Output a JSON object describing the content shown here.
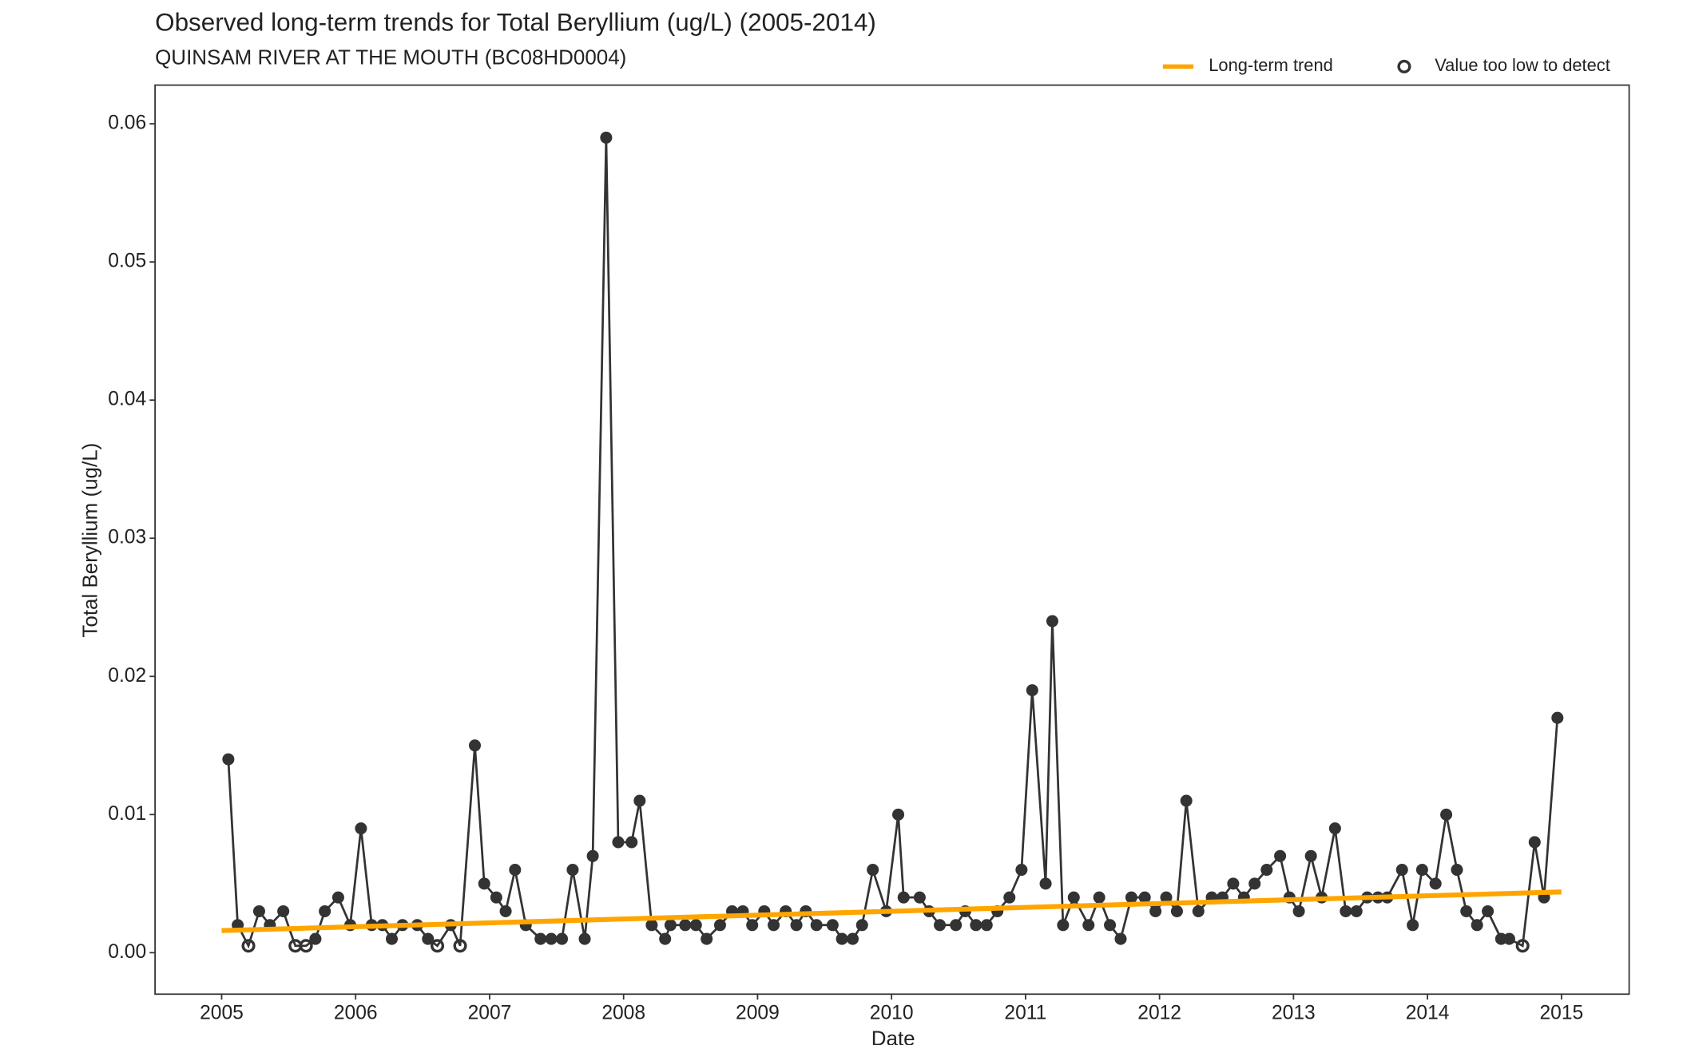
{
  "chart_data": {
    "type": "line",
    "title": "Observed long-term trends for Total Beryllium (ug/L) (2005-2014)",
    "subtitle": "QUINSAM RIVER AT THE MOUTH (BC08HD0004)",
    "x_label": "Date",
    "y_label": "Total Beryllium (ug/L)",
    "xlim": [
      2004.503,
      2015.505
    ],
    "ylim": [
      -0.003,
      0.0628
    ],
    "xticks": [
      2005,
      2006,
      2007,
      2008,
      2009,
      2010,
      2011,
      2012,
      2013,
      2014,
      2015
    ],
    "yticks": [
      {
        "value": 0,
        "label": "0.00"
      },
      0.01,
      0.02,
      0.03,
      0.04,
      0.05,
      0.06
    ],
    "grid": false,
    "legend_position": "top-right",
    "legend_marker_label": "Value too low to detect",
    "series": [
      {
        "color": "#333333",
        "x": [
          2005.05,
          2005.12,
          2005.2,
          2005.28,
          2005.36,
          2005.46,
          2005.55,
          2005.63,
          2005.7,
          2005.77,
          2005.87,
          2005.96,
          2006.04,
          2006.12,
          2006.2,
          2006.27,
          2006.35,
          2006.46,
          2006.54,
          2006.61,
          2006.71,
          2006.78,
          2006.89,
          2006.96,
          2007.05,
          2007.12,
          2007.19,
          2007.27,
          2007.38,
          2007.46,
          2007.54,
          2007.62,
          2007.71,
          2007.77,
          2007.87,
          2007.96,
          2008.06,
          2008.12,
          2008.21,
          2008.31,
          2008.35,
          2008.46,
          2008.54,
          2008.62,
          2008.72,
          2008.81,
          2008.89,
          2008.96,
          2009.05,
          2009.12,
          2009.21,
          2009.29,
          2009.36,
          2009.44,
          2009.56,
          2009.63,
          2009.71,
          2009.78,
          2009.86,
          2009.96,
          2010.05,
          2010.09,
          2010.21,
          2010.28,
          2010.36,
          2010.48,
          2010.55,
          2010.63,
          2010.71,
          2010.79,
          2010.88,
          2010.97,
          2011.05,
          2011.15,
          2011.2,
          2011.28,
          2011.36,
          2011.47,
          2011.55,
          2011.63,
          2011.71,
          2011.79,
          2011.89,
          2011.97,
          2012.05,
          2012.13,
          2012.2,
          2012.29,
          2012.39,
          2012.47,
          2012.55,
          2012.63,
          2012.71,
          2012.8,
          2012.9,
          2012.97,
          2013.04,
          2013.13,
          2013.21,
          2013.31,
          2013.39,
          2013.47,
          2013.55,
          2013.63,
          2013.7,
          2013.81,
          2013.89,
          2013.96,
          2014.06,
          2014.14,
          2014.22,
          2014.29,
          2014.37,
          2014.45,
          2014.55,
          2014.61,
          2014.71,
          2014.8,
          2014.87,
          2014.97
        ],
        "values": [
          0.014,
          0.002,
          0.0005,
          0.003,
          0.002,
          0.003,
          0.0005,
          0.0005,
          0.001,
          0.003,
          0.004,
          0.002,
          0.009,
          0.002,
          0.002,
          0.001,
          0.002,
          0.002,
          0.001,
          0.0005,
          0.002,
          0.0005,
          0.015,
          0.005,
          0.004,
          0.003,
          0.006,
          0.002,
          0.001,
          0.001,
          0.001,
          0.006,
          0.001,
          0.007,
          0.059,
          0.008,
          0.008,
          0.011,
          0.002,
          0.001,
          0.002,
          0.002,
          0.002,
          0.001,
          0.002,
          0.003,
          0.003,
          0.002,
          0.003,
          0.002,
          0.003,
          0.002,
          0.003,
          0.002,
          0.002,
          0.001,
          0.001,
          0.002,
          0.006,
          0.003,
          0.01,
          0.004,
          0.004,
          0.003,
          0.002,
          0.002,
          0.003,
          0.002,
          0.002,
          0.003,
          0.004,
          0.006,
          0.019,
          0.005,
          0.024,
          0.002,
          0.004,
          0.002,
          0.004,
          0.002,
          0.001,
          0.004,
          0.004,
          0.003,
          0.004,
          0.003,
          0.011,
          0.003,
          0.004,
          0.004,
          0.005,
          0.004,
          0.005,
          0.006,
          0.007,
          0.004,
          0.003,
          0.007,
          0.004,
          0.009,
          0.003,
          0.003,
          0.004,
          0.004,
          0.004,
          0.006,
          0.002,
          0.006,
          0.005,
          0.01,
          0.006,
          0.003,
          0.002,
          0.003,
          0.001,
          0.001,
          0.0005,
          0.008,
          0.004,
          0.017
        ],
        "below_detection": [
          false,
          false,
          true,
          false,
          false,
          false,
          true,
          true,
          false,
          false,
          false,
          false,
          false,
          false,
          false,
          false,
          false,
          false,
          false,
          true,
          false,
          true,
          false,
          false,
          false,
          false,
          false,
          false,
          false,
          false,
          false,
          false,
          false,
          false,
          false,
          false,
          false,
          false,
          false,
          false,
          false,
          false,
          false,
          false,
          false,
          false,
          false,
          false,
          false,
          false,
          false,
          false,
          false,
          false,
          false,
          false,
          false,
          false,
          false,
          false,
          false,
          false,
          false,
          false,
          false,
          false,
          false,
          false,
          false,
          false,
          false,
          false,
          false,
          false,
          false,
          false,
          false,
          false,
          false,
          false,
          false,
          false,
          false,
          false,
          false,
          false,
          false,
          false,
          false,
          false,
          false,
          false,
          false,
          false,
          false,
          false,
          false,
          false,
          false,
          false,
          false,
          false,
          false,
          false,
          false,
          false,
          false,
          false,
          false,
          false,
          false,
          false,
          false,
          false,
          false,
          false,
          true,
          false,
          false,
          false
        ]
      },
      {
        "name": "Long-term trend",
        "color": "#FFA500",
        "x": [
          2005,
          2015
        ],
        "values": [
          0.0016,
          0.0044
        ]
      }
    ]
  }
}
